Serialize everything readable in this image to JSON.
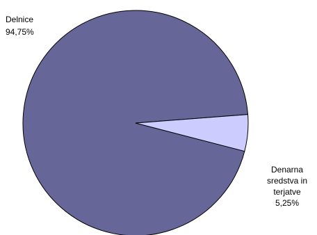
{
  "chart_data": {
    "type": "pie",
    "slices": [
      {
        "label": "Delnice",
        "value_text": "94,75%",
        "value": 94.75,
        "color": "#666699"
      },
      {
        "label": "Denarna sredstva in terjatve",
        "label_lines": [
          "Denarna",
          "sredstva in",
          "terjatve"
        ],
        "value_text": "5,25%",
        "value": 5.25,
        "color": "#ccccff"
      }
    ],
    "legend": "none"
  }
}
